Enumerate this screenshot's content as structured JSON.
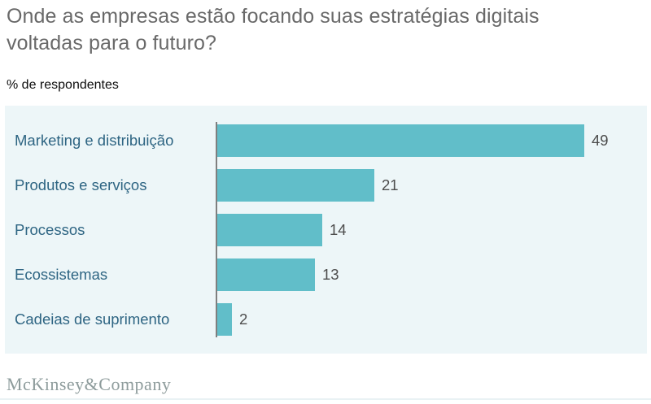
{
  "title": "Onde as empresas estão focando suas estratégias digitais voltadas para o futuro?",
  "subtitle": "% de respondentes",
  "footer": {
    "logo_text": "McKinsey&Company"
  },
  "colors": {
    "bar": "#61bec9",
    "panel_background": "#edf6f8",
    "title_text": "#696969",
    "category_label_text": "#2e6583",
    "value_label_text": "#4d4d4d",
    "axis_line": "#7f7f7f",
    "logo_text": "#8e9c9c"
  },
  "chart_data": {
    "type": "bar",
    "orientation": "horizontal",
    "title": "Onde as empresas estão focando suas estratégias digitais voltadas para o futuro?",
    "unit_label": "% de respondentes",
    "categories": [
      "Marketing e distribuição",
      "Produtos e serviços",
      "Processos",
      "Ecossistemas",
      "Cadeias de suprimento"
    ],
    "values": [
      49,
      21,
      14,
      13,
      2
    ],
    "xlabel": "",
    "ylabel": "",
    "xlim": [
      0,
      53
    ],
    "grid": false,
    "legend": false,
    "value_labels": true
  }
}
